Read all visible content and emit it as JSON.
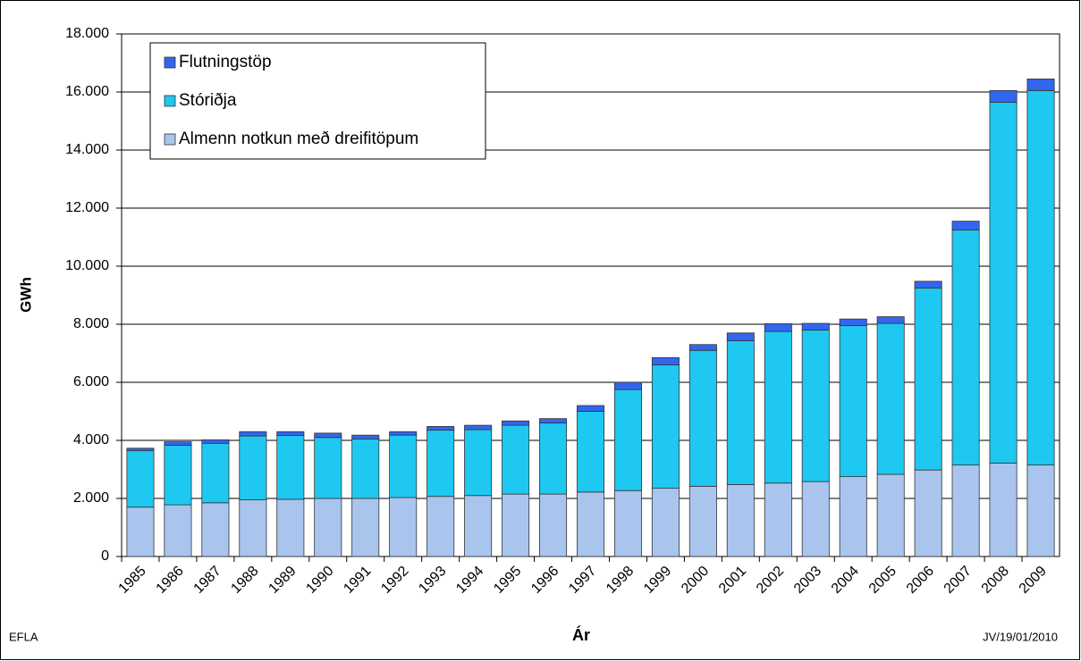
{
  "chart_data": {
    "type": "stacked-bar",
    "y_label": "GWh",
    "x_label": "Ár",
    "annotations": [
      "EFLA",
      "JV/19/01/2010"
    ],
    "categories": [
      "1985",
      "1986",
      "1987",
      "1988",
      "1989",
      "1990",
      "1991",
      "1992",
      "1993",
      "1994",
      "1995",
      "1996",
      "1997",
      "1998",
      "1999",
      "2000",
      "2001",
      "2002",
      "2003",
      "2004",
      "2005",
      "2006",
      "2007",
      "2008",
      "2009"
    ],
    "series": [
      {
        "name": "Almenn notkun með dreifitöpum",
        "color": "#a9c5ee",
        "values": [
          1700,
          1780,
          1850,
          1950,
          1970,
          2000,
          2000,
          2030,
          2070,
          2100,
          2150,
          2150,
          2220,
          2270,
          2350,
          2420,
          2480,
          2530,
          2580,
          2750,
          2830,
          2980,
          3150,
          3220,
          3150
        ]
      },
      {
        "name": "Stóriðja",
        "color": "#1ec8f0",
        "values": [
          1950,
          2050,
          2050,
          2200,
          2200,
          2100,
          2050,
          2150,
          2280,
          2270,
          2370,
          2450,
          2780,
          3480,
          4250,
          4680,
          4950,
          5220,
          5220,
          5200,
          5200,
          6270,
          8100,
          12430,
          12900
        ]
      },
      {
        "name": "Flutningstöp",
        "color": "#3366ee",
        "values": [
          80,
          120,
          120,
          150,
          130,
          150,
          130,
          120,
          130,
          150,
          150,
          150,
          200,
          250,
          250,
          200,
          270,
          270,
          230,
          230,
          230,
          230,
          300,
          400,
          400
        ]
      }
    ],
    "ylim": [
      0,
      18000
    ],
    "yticks": [
      0,
      {
        "value": 2000,
        "label": "2.000"
      },
      {
        "value": 4000,
        "label": "4.000"
      },
      {
        "value": 6000,
        "label": "6.000"
      },
      {
        "value": 8000,
        "label": "8.000"
      },
      {
        "value": 10000,
        "label": "10.000"
      },
      {
        "value": 12000,
        "label": "12.000"
      },
      {
        "value": 14000,
        "label": "14.000"
      },
      {
        "value": 16000,
        "label": "16.000"
      },
      {
        "value": 18000,
        "label": "18.000"
      }
    ],
    "grid": true,
    "legend": "upper left"
  }
}
